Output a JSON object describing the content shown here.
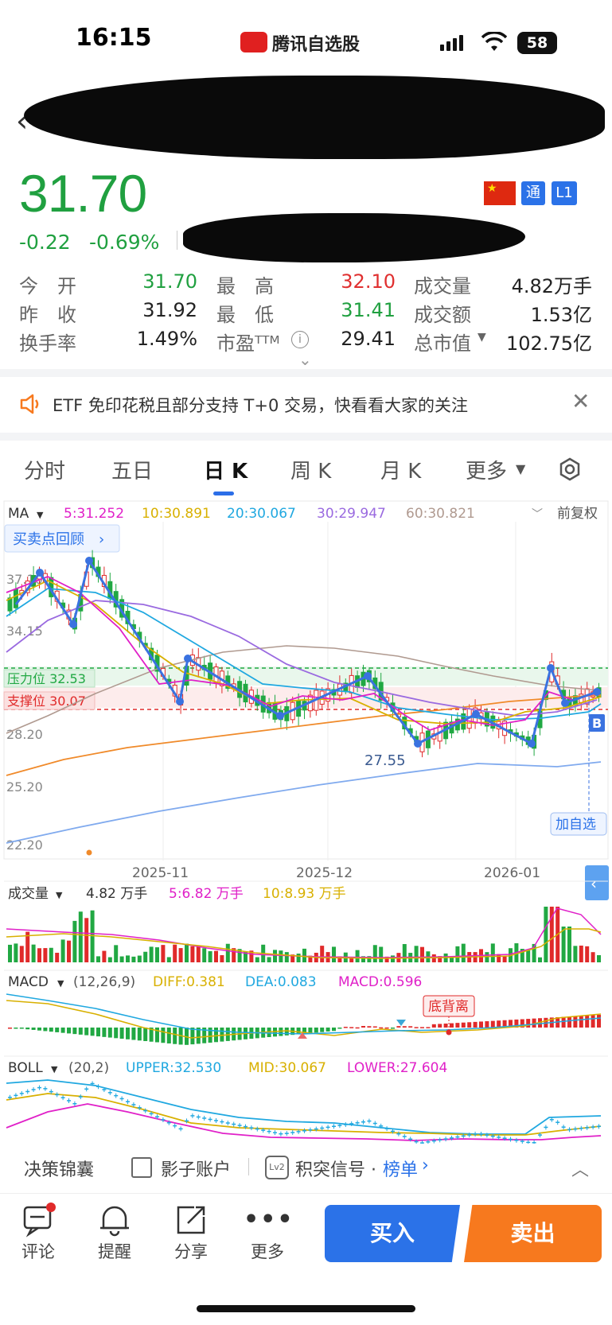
{
  "status": {
    "time": "16:15",
    "app_name": "腾讯自选股",
    "battery": "58"
  },
  "quote": {
    "price": "31.70",
    "change": "-0.22",
    "change_pct": "-0.69%",
    "tags": [
      "通",
      "L1"
    ],
    "stats": [
      {
        "label": "今　开",
        "value": "31.70",
        "color": "green"
      },
      {
        "label": "最　高",
        "value": "32.10",
        "color": "red"
      },
      {
        "label": "成交量",
        "value": "4.82万手",
        "color": "dark"
      },
      {
        "label": "昨　收",
        "value": "31.92",
        "color": "dark"
      },
      {
        "label": "最　低",
        "value": "31.41",
        "color": "green"
      },
      {
        "label": "成交额",
        "value": "1.53亿",
        "color": "dark"
      },
      {
        "label": "换手率",
        "value": "1.49%",
        "color": "dark"
      },
      {
        "label": "市盈ᵀᵀᴹ",
        "value": "29.41",
        "color": "dark"
      },
      {
        "label": "总市值",
        "value": "102.75亿",
        "color": "dark"
      }
    ]
  },
  "notice": {
    "text": "ETF 免印花税且部分支持 T+0 交易，快看看大家的关注"
  },
  "tabs": [
    "分时",
    "五日",
    "日 K",
    "周 K",
    "月 K",
    "更多"
  ],
  "chart": {
    "ma_label": "MA",
    "ma5": "5:31.252",
    "ma10": "10:30.891",
    "ma20": "20:30.067",
    "ma30": "30:29.947",
    "ma60": "60:30.821",
    "adjust": "前复权",
    "review_button": "买卖点回顾",
    "y_ticks": [
      "37.10",
      "34.15",
      "28.20",
      "25.20",
      "22.20"
    ],
    "resistance": "压力位 32.53",
    "support": "支撑位 30.07",
    "low_label": "27.55",
    "b_marker": "B",
    "add_watch": "加自选",
    "x_ticks": [
      "2025-11",
      "2025-12",
      "2026-01"
    ],
    "vol_label": "成交量",
    "vol_value": "4.82 万手",
    "vol5": "5:6.82 万手",
    "vol10": "10:8.93 万手",
    "macd_label": "MACD",
    "macd_params": "(12,26,9)",
    "diff": "DIFF:0.381",
    "dea": "DEA:0.083",
    "macd": "MACD:0.596",
    "divergence": "底背离",
    "boll_label": "BOLL",
    "boll_params": "(20,2)",
    "upper": "UPPER:32.530",
    "mid": "MID:30.067",
    "lower": "LOWER:27.604",
    "colors": {
      "up": "#e02a2a",
      "down": "#21a843",
      "ma5": "#e020c8",
      "ma10": "#d8b000",
      "ma20": "#20a8e0",
      "ma30": "#9a6ae0",
      "ma60": "#b09a90"
    }
  },
  "toolbar": {
    "item1": "决策锦囊",
    "item2": "影子账户",
    "item3": "积突信号 · ",
    "item3_link": "榜单"
  },
  "bottom": {
    "comment": "评论",
    "remind": "提醒",
    "share": "分享",
    "more": "更多",
    "buy": "买入",
    "sell": "卖出"
  }
}
